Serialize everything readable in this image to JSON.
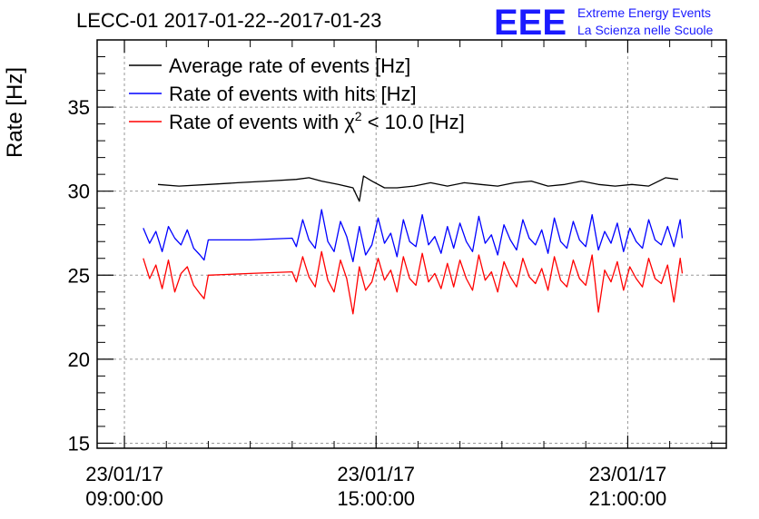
{
  "colors": {
    "average": "#000000",
    "hits": "#0000ff",
    "chi2": "#ff0000",
    "logo": "#1a1aff",
    "grid": "#999999"
  },
  "header": {
    "title": "LECC-01 2017-01-22--2017-01-23",
    "logo_mark": "EEE",
    "logo_line1": "Extreme Energy Events",
    "logo_line2": "La Scienza nelle Scuole"
  },
  "chart_data": {
    "type": "line",
    "title": "LECC-01 2017-01-22--2017-01-23",
    "xlabel": "",
    "ylabel": "Rate [Hz]",
    "x_unit": "hours",
    "xlim": [
      8.35,
      23.35
    ],
    "ylim": [
      14.7,
      39.0
    ],
    "yticks": [
      15,
      20,
      25,
      30,
      35
    ],
    "ytick_labels": [
      "15",
      "20",
      "25",
      "30",
      "35"
    ],
    "xticks": [
      9,
      15,
      21
    ],
    "xtick_labels": [
      [
        "23/01/17",
        "09:00:00"
      ],
      [
        "23/01/17",
        "15:00:00"
      ],
      [
        "23/01/17",
        "21:00:00"
      ]
    ],
    "grid": true,
    "legend_position": "top-left",
    "legend": [
      {
        "key": "average",
        "label": "Average rate of events [Hz]"
      },
      {
        "key": "hits",
        "label": "Rate of events with hits [Hz]"
      },
      {
        "key": "chi2",
        "prefix": "Rate of events with ",
        "symbol": "χ",
        "sup": "2",
        "suffix": " < 10.0 [Hz]"
      }
    ],
    "series": [
      {
        "key": "average",
        "name": "Average rate of events [Hz]",
        "x": [
          9.8,
          10.3,
          11.0,
          11.7,
          12.4,
          13.1,
          13.4,
          13.7,
          14.1,
          14.45,
          14.6,
          14.7,
          14.9,
          15.2,
          15.5,
          15.9,
          16.3,
          16.7,
          17.1,
          17.5,
          17.9,
          18.3,
          18.7,
          19.1,
          19.5,
          19.9,
          20.3,
          20.7,
          21.1,
          21.5,
          21.9,
          22.2
        ],
        "y": [
          30.4,
          30.3,
          30.4,
          30.5,
          30.6,
          30.7,
          30.8,
          30.6,
          30.4,
          30.2,
          29.4,
          30.9,
          30.6,
          30.2,
          30.2,
          30.3,
          30.5,
          30.3,
          30.5,
          30.4,
          30.3,
          30.5,
          30.6,
          30.3,
          30.4,
          30.6,
          30.4,
          30.3,
          30.4,
          30.3,
          30.8,
          30.7
        ]
      },
      {
        "key": "hits",
        "name": "Rate of events with hits [Hz]",
        "x": [
          9.45,
          9.6,
          9.75,
          9.9,
          10.05,
          10.2,
          10.35,
          10.5,
          10.65,
          10.8,
          10.9,
          11.0,
          12.0,
          13.0,
          13.1,
          13.25,
          13.4,
          13.55,
          13.7,
          13.85,
          14.0,
          14.15,
          14.3,
          14.45,
          14.6,
          14.75,
          14.9,
          15.05,
          15.2,
          15.35,
          15.5,
          15.65,
          15.8,
          15.95,
          16.1,
          16.25,
          16.4,
          16.55,
          16.7,
          16.85,
          17.0,
          17.15,
          17.3,
          17.45,
          17.6,
          17.75,
          17.9,
          18.05,
          18.2,
          18.35,
          18.5,
          18.65,
          18.8,
          18.95,
          19.1,
          19.25,
          19.4,
          19.55,
          19.7,
          19.85,
          20.0,
          20.15,
          20.3,
          20.45,
          20.6,
          20.75,
          20.9,
          21.05,
          21.2,
          21.35,
          21.5,
          21.65,
          21.8,
          21.95,
          22.1,
          22.25,
          22.3
        ],
        "y": [
          27.8,
          26.9,
          27.6,
          26.4,
          27.9,
          27.2,
          26.8,
          27.7,
          26.6,
          26.2,
          25.9,
          27.1,
          27.1,
          27.2,
          26.7,
          28.3,
          27.1,
          26.6,
          28.9,
          27.0,
          26.4,
          28.2,
          27.3,
          25.8,
          27.9,
          26.2,
          26.8,
          28.4,
          26.9,
          27.5,
          26.1,
          28.3,
          27.0,
          26.7,
          28.6,
          26.8,
          27.3,
          26.3,
          27.9,
          26.6,
          28.1,
          27.0,
          26.4,
          28.5,
          26.9,
          27.4,
          26.2,
          28.0,
          27.1,
          26.5,
          28.3,
          27.2,
          26.8,
          27.7,
          26.3,
          28.4,
          27.0,
          26.6,
          28.2,
          27.1,
          26.7,
          28.6,
          26.5,
          27.6,
          26.9,
          28.1,
          26.4,
          27.8,
          27.0,
          26.6,
          28.3,
          27.1,
          26.8,
          27.9,
          26.7,
          28.3,
          27.2
        ]
      },
      {
        "key": "chi2",
        "name": "Rate of events with χ2 < 10.0 [Hz]",
        "x": [
          9.45,
          9.6,
          9.75,
          9.9,
          10.05,
          10.2,
          10.35,
          10.5,
          10.65,
          10.8,
          10.9,
          11.0,
          12.0,
          13.0,
          13.1,
          13.25,
          13.4,
          13.55,
          13.7,
          13.85,
          14.0,
          14.15,
          14.3,
          14.45,
          14.6,
          14.75,
          14.9,
          15.05,
          15.2,
          15.35,
          15.5,
          15.65,
          15.8,
          15.95,
          16.1,
          16.25,
          16.4,
          16.55,
          16.7,
          16.85,
          17.0,
          17.15,
          17.3,
          17.45,
          17.6,
          17.75,
          17.9,
          18.05,
          18.2,
          18.35,
          18.5,
          18.65,
          18.8,
          18.95,
          19.1,
          19.25,
          19.4,
          19.55,
          19.7,
          19.85,
          20.0,
          20.15,
          20.3,
          20.45,
          20.6,
          20.75,
          20.9,
          21.05,
          21.2,
          21.35,
          21.5,
          21.65,
          21.8,
          21.95,
          22.1,
          22.25,
          22.3
        ],
        "y": [
          26.0,
          24.8,
          25.6,
          24.2,
          25.9,
          24.0,
          25.1,
          25.5,
          24.4,
          23.9,
          23.6,
          25.0,
          25.1,
          25.2,
          24.6,
          26.1,
          24.9,
          24.3,
          26.4,
          24.7,
          24.0,
          25.9,
          24.8,
          22.7,
          25.5,
          24.1,
          24.6,
          26.0,
          24.7,
          25.3,
          24.0,
          26.1,
          24.8,
          24.4,
          26.3,
          24.6,
          25.1,
          24.2,
          25.7,
          24.3,
          25.9,
          24.8,
          24.1,
          26.2,
          24.7,
          25.2,
          24.0,
          25.8,
          24.9,
          24.3,
          26.0,
          24.9,
          24.5,
          25.4,
          24.1,
          26.1,
          24.7,
          24.3,
          25.9,
          24.8,
          24.4,
          26.2,
          22.8,
          25.3,
          24.6,
          25.8,
          24.1,
          25.5,
          24.8,
          24.3,
          26.0,
          24.8,
          24.5,
          25.6,
          23.4,
          26.0,
          25.1
        ]
      }
    ]
  }
}
